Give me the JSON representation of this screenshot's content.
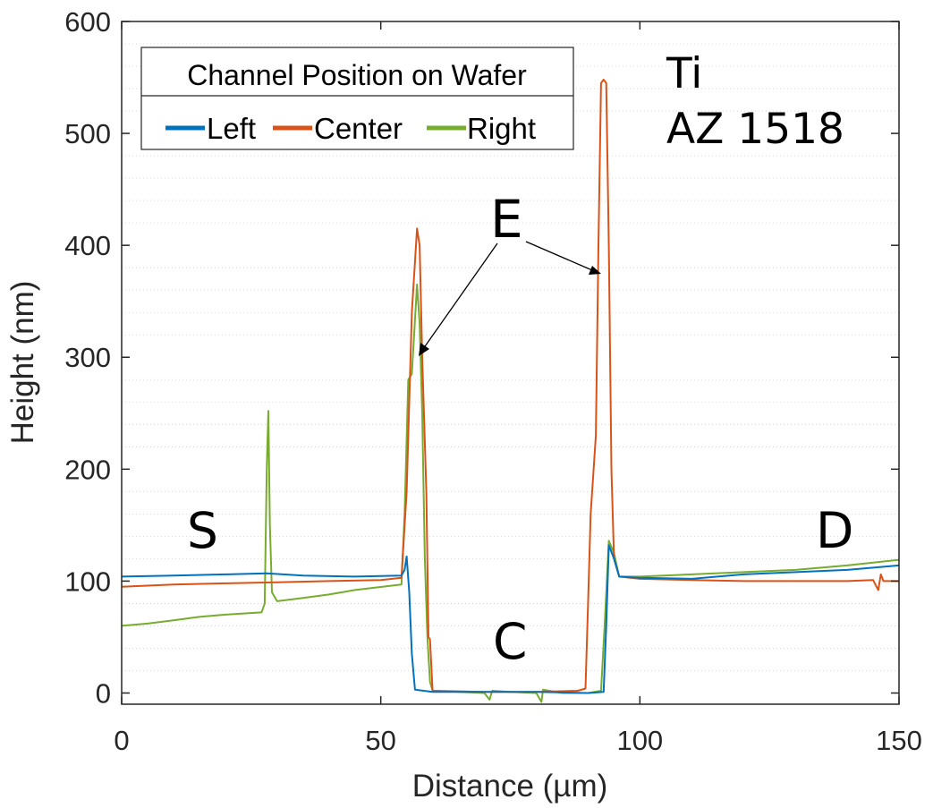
{
  "chart_data": {
    "type": "line",
    "title": "",
    "xlabel": "Distance (µm)",
    "ylabel": "Height (nm)",
    "xlim": [
      0,
      150
    ],
    "ylim": [
      -10,
      600
    ],
    "xticks": [
      0,
      50,
      100,
      150
    ],
    "xtick_labels": [
      "0",
      "50",
      "100",
      "150"
    ],
    "yticks": [
      0,
      100,
      200,
      300,
      400,
      500,
      600
    ],
    "ytick_labels": [
      "0",
      "100",
      "200",
      "300",
      "400",
      "500",
      "600"
    ],
    "grid": "minor horizontal dotted",
    "legend": {
      "title": "Channel Position on Wafer",
      "placement": "top-left",
      "entries": [
        "Left",
        "Center",
        "Right"
      ]
    },
    "annotations": {
      "material": "Ti",
      "resist": "AZ 1518",
      "source": "S",
      "drain": "D",
      "channel": "C",
      "edge": "E"
    },
    "series": [
      {
        "name": "Left",
        "color": "#0072BD",
        "points": [
          [
            0,
            104
          ],
          [
            10,
            105
          ],
          [
            20,
            106
          ],
          [
            28,
            107
          ],
          [
            35,
            105
          ],
          [
            45,
            104
          ],
          [
            54,
            105
          ],
          [
            54.6,
            110
          ],
          [
            55,
            122
          ],
          [
            55.5,
            90
          ],
          [
            56,
            35
          ],
          [
            56.6,
            3
          ],
          [
            60,
            1
          ],
          [
            70,
            1
          ],
          [
            80,
            1
          ],
          [
            90,
            0
          ],
          [
            93,
            1
          ],
          [
            93.5,
            60
          ],
          [
            94,
            132
          ],
          [
            95,
            120
          ],
          [
            96,
            104
          ],
          [
            100,
            103
          ],
          [
            110,
            102
          ],
          [
            120,
            106
          ],
          [
            130,
            108
          ],
          [
            140,
            110
          ],
          [
            150,
            114
          ]
        ]
      },
      {
        "name": "Center",
        "color": "#D95319",
        "points": [
          [
            0,
            95
          ],
          [
            10,
            97
          ],
          [
            20,
            98
          ],
          [
            30,
            99
          ],
          [
            40,
            100
          ],
          [
            50,
            101
          ],
          [
            54,
            103
          ],
          [
            55,
            180
          ],
          [
            56,
            340
          ],
          [
            57,
            415
          ],
          [
            57.5,
            400
          ],
          [
            58,
            300
          ],
          [
            58.8,
            180
          ],
          [
            59.2,
            50
          ],
          [
            59.5,
            48
          ],
          [
            60,
            2
          ],
          [
            70,
            1
          ],
          [
            80,
            1
          ],
          [
            88,
            2
          ],
          [
            89.5,
            4
          ],
          [
            90,
            80
          ],
          [
            90.5,
            160
          ],
          [
            91.5,
            230
          ],
          [
            92,
            400
          ],
          [
            92.5,
            545
          ],
          [
            93,
            548
          ],
          [
            93.5,
            545
          ],
          [
            94,
            400
          ],
          [
            94.5,
            200
          ],
          [
            95,
            120
          ],
          [
            96,
            104
          ],
          [
            100,
            102
          ],
          [
            110,
            101
          ],
          [
            120,
            100
          ],
          [
            130,
            100
          ],
          [
            140,
            100
          ],
          [
            145,
            101
          ],
          [
            146,
            92
          ],
          [
            146.5,
            106
          ],
          [
            147,
            100
          ],
          [
            150,
            100
          ]
        ]
      },
      {
        "name": "Right",
        "color": "#77AC30",
        "points": [
          [
            0,
            60
          ],
          [
            5,
            62
          ],
          [
            10,
            65
          ],
          [
            15,
            68
          ],
          [
            20,
            70
          ],
          [
            27,
            72
          ],
          [
            27.6,
            80
          ],
          [
            28,
            200
          ],
          [
            28.3,
            252
          ],
          [
            28.6,
            150
          ],
          [
            29,
            90
          ],
          [
            30,
            82
          ],
          [
            35,
            85
          ],
          [
            40,
            88
          ],
          [
            45,
            92
          ],
          [
            54,
            97
          ],
          [
            54.6,
            160
          ],
          [
            55.3,
            280
          ],
          [
            56,
            285
          ],
          [
            56.5,
            325
          ],
          [
            57,
            365
          ],
          [
            57.5,
            330
          ],
          [
            58,
            250
          ],
          [
            58.5,
            120
          ],
          [
            59,
            50
          ],
          [
            59.5,
            10
          ],
          [
            60,
            2
          ],
          [
            65,
            1
          ],
          [
            70,
            0
          ],
          [
            71,
            -6
          ],
          [
            71.5,
            2
          ],
          [
            75,
            1
          ],
          [
            80,
            0
          ],
          [
            81,
            -8
          ],
          [
            81.3,
            3
          ],
          [
            85,
            0
          ],
          [
            90,
            0
          ],
          [
            92.5,
            2
          ],
          [
            93.2,
            60
          ],
          [
            94,
            136
          ],
          [
            95,
            125
          ],
          [
            96,
            104
          ],
          [
            100,
            104
          ],
          [
            110,
            106
          ],
          [
            120,
            108
          ],
          [
            130,
            110
          ],
          [
            140,
            114
          ],
          [
            150,
            119
          ]
        ]
      }
    ]
  }
}
